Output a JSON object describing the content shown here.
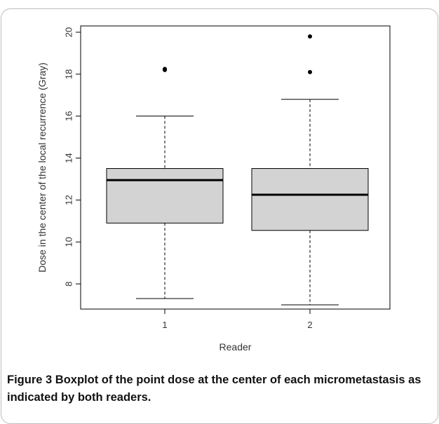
{
  "chart_data": {
    "type": "box",
    "xlabel": "Reader",
    "ylabel": "Dose in the center of the local recurrence (Gray)",
    "ylim": [
      6.8,
      20.3
    ],
    "y_ticks": [
      "8",
      "10",
      "12",
      "14",
      "16",
      "18",
      "20"
    ],
    "categories": [
      "1",
      "2"
    ],
    "boxes": [
      {
        "category": "1",
        "whisker_low": 7.3,
        "q1": 10.9,
        "median": 12.95,
        "q3": 13.5,
        "whisker_high": 16.0,
        "outliers": [
          18.2,
          18.25
        ]
      },
      {
        "category": "2",
        "whisker_low": 7.0,
        "q1": 10.55,
        "median": 12.25,
        "q3": 13.5,
        "whisker_high": 16.8,
        "outliers": [
          18.1,
          19.8
        ]
      }
    ],
    "grid": false,
    "colors": {
      "box_fill": "#d3d3d3",
      "stroke": "#000000"
    }
  },
  "caption": {
    "label": "Figure 3",
    "text": "Boxplot of the point dose at the center of each micrometastasis as indicated by both readers."
  }
}
